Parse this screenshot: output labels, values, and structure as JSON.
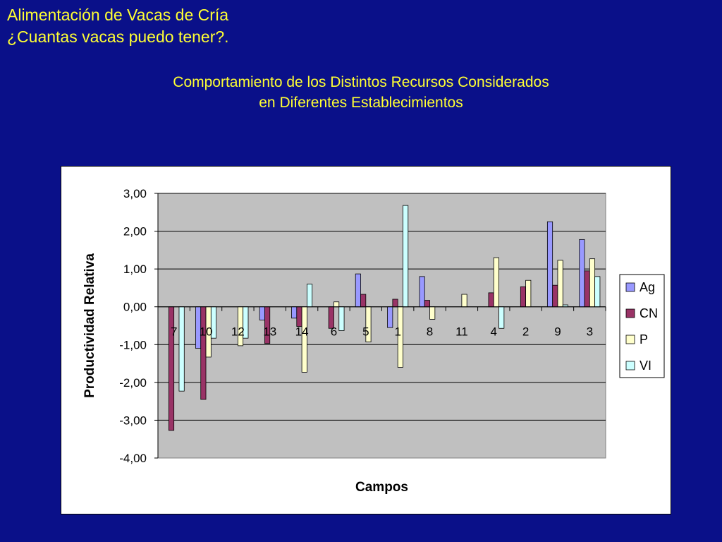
{
  "slide": {
    "title_line1": "Alimentación de Vacas de Cría",
    "title_line2": "¿Cuantas vacas puedo tener?."
  },
  "chart_heading": {
    "line1": "Comportamiento de los Distintos Recursos Considerados",
    "line2": "en Diferentes Establecimientos"
  },
  "colors": {
    "background": "#0a1089",
    "heading_text": "#ffff33",
    "plot_area": "#c0c0c0",
    "series": {
      "Ag": "#9999ff",
      "CN": "#993366",
      "P": "#ffffcc",
      "VI": "#ccffff"
    }
  },
  "chart_data": {
    "type": "bar",
    "title": "",
    "xlabel": "Campos",
    "ylabel": "Productividad Relativa",
    "ylim": [
      -4,
      3
    ],
    "yticks": [
      "-4,00",
      "-3,00",
      "-2,00",
      "-1,00",
      "0,00",
      "1,00",
      "2,00",
      "3,00"
    ],
    "ytick_values": [
      -4,
      -3,
      -2,
      -1,
      0,
      1,
      2,
      3
    ],
    "categories": [
      "7",
      "10",
      "12",
      "13",
      "14",
      "6",
      "5",
      "1",
      "8",
      "11",
      "4",
      "2",
      "9",
      "3"
    ],
    "grid": true,
    "legend_position": "right",
    "series": [
      {
        "name": "Ag",
        "values": [
          0,
          -1.1,
          0,
          -0.35,
          -0.3,
          0,
          0.87,
          -0.55,
          0.8,
          0,
          0,
          0,
          2.25,
          1.78
        ]
      },
      {
        "name": "CN",
        "values": [
          -3.27,
          -2.45,
          0,
          -0.97,
          -0.52,
          -0.57,
          0.33,
          0.2,
          0.17,
          0,
          0.37,
          0.53,
          0.57,
          0.95
        ]
      },
      {
        "name": "P",
        "values": [
          0,
          -1.33,
          -1.03,
          0,
          -1.73,
          0.13,
          -0.93,
          -1.6,
          -0.33,
          0.33,
          1.3,
          0.7,
          1.23,
          1.27
        ]
      },
      {
        "name": "VI",
        "values": [
          -2.23,
          -0.83,
          -0.83,
          0,
          0.6,
          -0.63,
          0,
          2.68,
          0,
          0,
          -0.57,
          0,
          0.05,
          0.8
        ]
      }
    ]
  }
}
